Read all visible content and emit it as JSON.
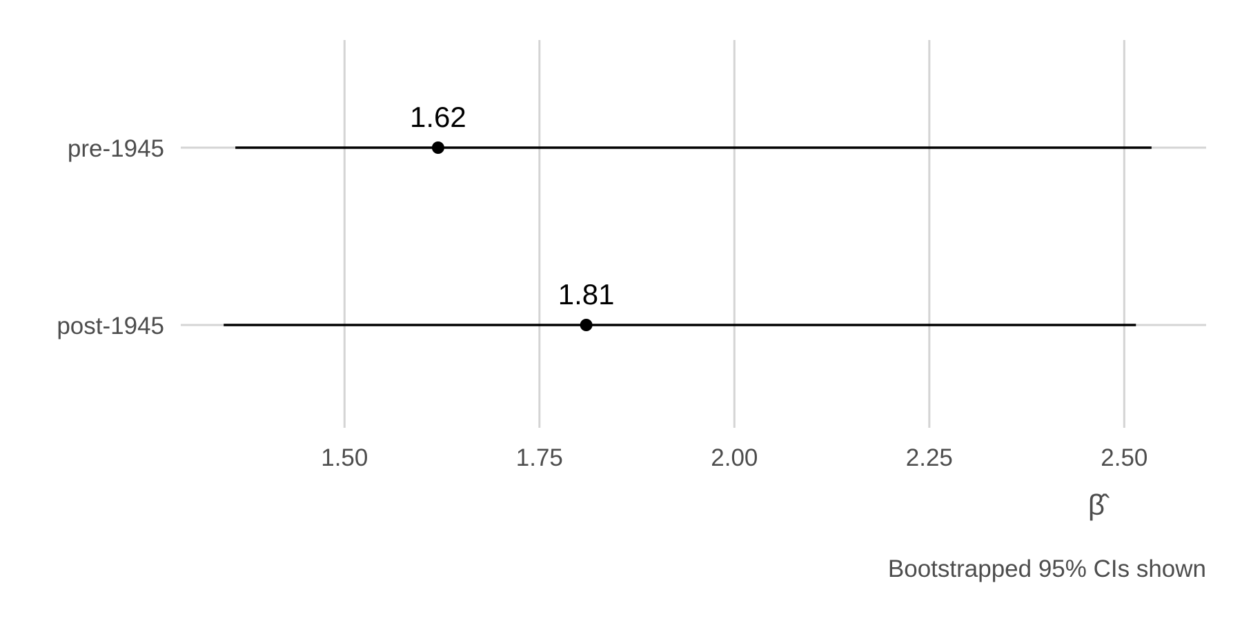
{
  "chart_data": {
    "type": "forest",
    "xlabel": "β̂",
    "caption": "Bootstrapped 95% CIs shown",
    "xlim": [
      1.29,
      2.605
    ],
    "x_ticks": [
      1.5,
      1.75,
      2.0,
      2.25,
      2.5
    ],
    "x_tick_labels": [
      "1.50",
      "1.75",
      "2.00",
      "2.25",
      "2.50"
    ],
    "grid": true,
    "categories": [
      "pre-1945",
      "post-1945"
    ],
    "estimates": [
      1.62,
      1.81
    ],
    "estimate_labels": [
      "1.62",
      "1.81"
    ],
    "ci_lower": [
      1.36,
      1.345
    ],
    "ci_upper": [
      2.535,
      2.515
    ]
  }
}
